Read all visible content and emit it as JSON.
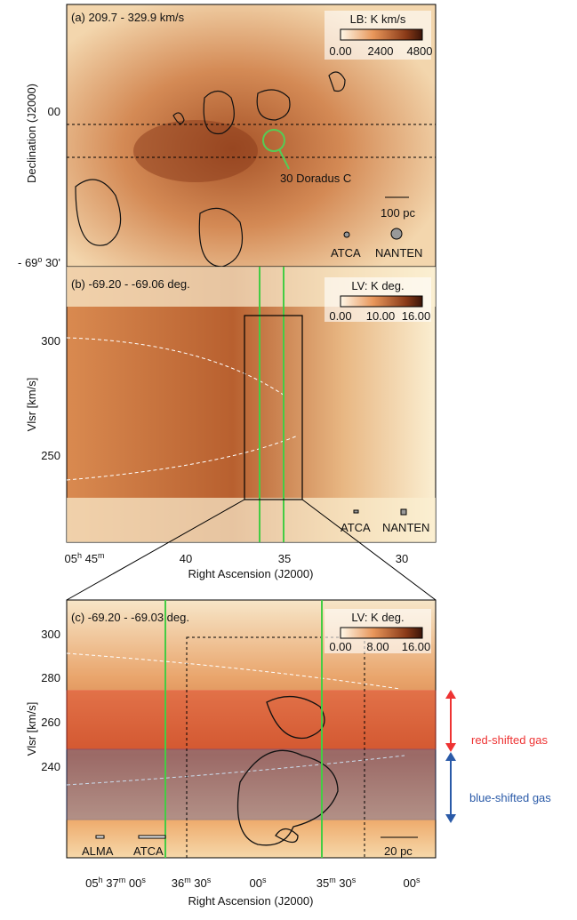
{
  "panel_a": {
    "title": "(a) 209.7 -  329.9 km/s",
    "colorbar": {
      "title": "LB: K km/s",
      "ticks": [
        "0.00",
        "2400",
        "4800"
      ]
    },
    "y_label": "Declination (J2000)",
    "y_ticks": [
      [
        "00"
      ],
      [
        "- 69",
        "o",
        " 30'"
      ]
    ],
    "annotations": {
      "source": "30 Doradus C",
      "scale": "100 pc",
      "beam_1": "ATCA",
      "beam_2": "NANTEN"
    }
  },
  "panel_b": {
    "title": "(b) -69.20 - -69.06 deg.",
    "colorbar": {
      "title": "LV: K deg.",
      "ticks": [
        "0.00",
        "10.00",
        "16.00"
      ]
    },
    "y_label": "Vlsr [km/s]",
    "y_ticks": [
      "300",
      "250"
    ],
    "x_label": "Right Ascension (J2000)",
    "x_ticks": [
      [
        "05",
        "h",
        " 45",
        "m"
      ],
      [
        "40"
      ],
      [
        "35"
      ],
      [
        "30"
      ]
    ],
    "annotations": {
      "beam_1": "ATCA",
      "beam_2": "NANTEN"
    }
  },
  "panel_c": {
    "title": "(c) -69.20 - -69.03 deg.",
    "colorbar": {
      "title": "LV: K deg.",
      "ticks": [
        "0.00",
        "8.00",
        "16.00"
      ]
    },
    "y_label": "Vlsr [km/s]",
    "y_ticks": [
      "300",
      "280",
      "260",
      "240"
    ],
    "x_label": "Right Ascension (J2000)",
    "x_ticks": [
      [
        "05",
        "h",
        " 37",
        "m",
        " 00",
        "s"
      ],
      [
        "36",
        "m",
        " 30",
        "s"
      ],
      [
        "00",
        "s"
      ],
      [
        "35",
        "m",
        " 30",
        "s"
      ],
      [
        "00",
        "s"
      ]
    ],
    "annotations": {
      "beam_1": "ALMA",
      "beam_2": "ATCA",
      "scale": "20 pc"
    }
  },
  "side_labels": {
    "red": "red-shifted gas",
    "blue": "blue-shifted gas"
  }
}
